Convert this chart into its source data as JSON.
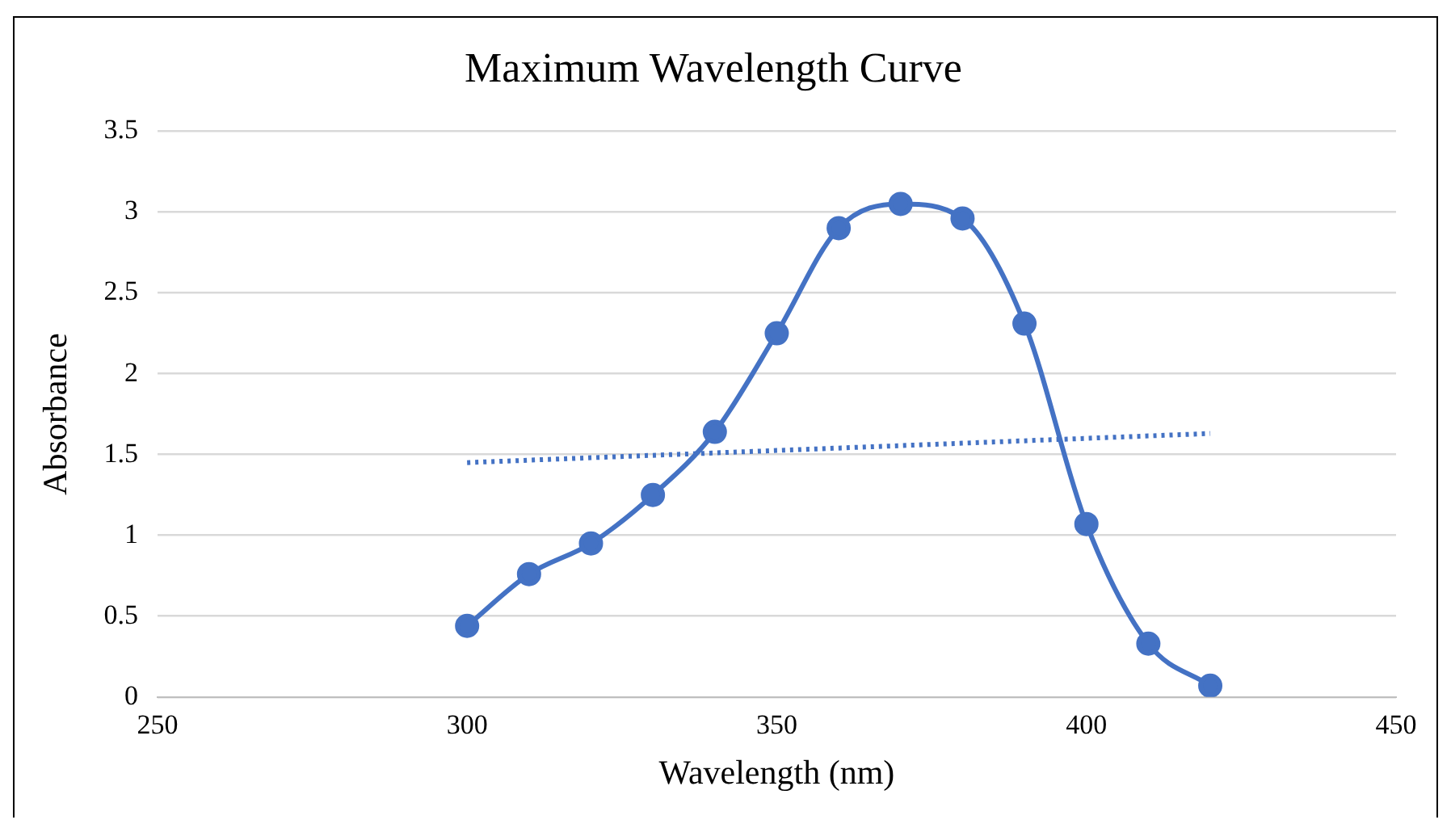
{
  "chart_data": {
    "type": "line",
    "title": "Maximum Wavelength Curve",
    "xlabel": "Wavelength (nm)",
    "ylabel": "Absorbance",
    "x": [
      300,
      310,
      320,
      330,
      340,
      350,
      360,
      370,
      380,
      390,
      400,
      410,
      420
    ],
    "series": [
      {
        "color": "#4472c4",
        "marker": "circle",
        "line_style": "solid",
        "values": [
          0.44,
          0.76,
          0.95,
          1.25,
          1.64,
          2.25,
          2.9,
          3.05,
          2.96,
          2.31,
          1.07,
          0.33,
          0.07
        ]
      },
      {
        "color": "#4472c4",
        "marker": "none",
        "line_style": "dotted",
        "x": [
          300,
          420
        ],
        "values": [
          1.45,
          1.63
        ]
      }
    ],
    "xlim": [
      250,
      450
    ],
    "xticks": [
      250,
      300,
      350,
      400,
      450
    ],
    "ylim": [
      0,
      3.5
    ],
    "yticks": [
      0,
      0.5,
      1,
      1.5,
      2,
      2.5,
      3,
      3.5
    ],
    "grid": "y"
  }
}
